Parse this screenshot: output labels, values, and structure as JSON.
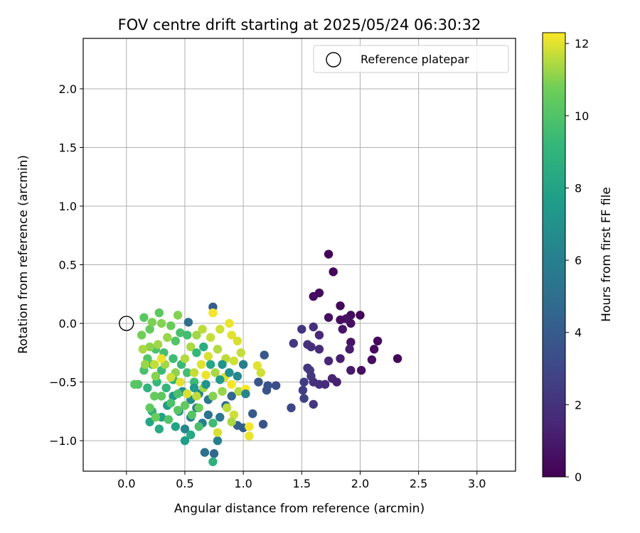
{
  "chart_data": {
    "type": "scatter",
    "title": "FOV centre drift starting at 2025/05/24 06:30:32",
    "xlabel": "Angular distance from reference (arcmin)",
    "ylabel": "Rotation from reference (arcmin)",
    "xlim": [
      -0.37,
      3.33
    ],
    "ylim": [
      -1.26,
      2.43
    ],
    "xticks": [
      "0.0",
      "0.5",
      "1.0",
      "1.5",
      "2.0",
      "2.5",
      "3.0"
    ],
    "xtick_values": [
      0,
      0.5,
      1.0,
      1.5,
      2.0,
      2.5,
      3.0
    ],
    "yticks": [
      "−1.0",
      "−0.5",
      "0.0",
      "0.5",
      "1.0",
      "1.5",
      "2.0"
    ],
    "ytick_values": [
      -1.0,
      -0.5,
      0.0,
      0.5,
      1.0,
      1.5,
      2.0
    ],
    "grid": true,
    "legend": {
      "position": "top-right",
      "entries": [
        {
          "label": "Reference platepar",
          "marker": "open-circle"
        }
      ]
    },
    "reference_point": {
      "x": 0.0,
      "y": 0.0
    },
    "colorbar": {
      "label": "Hours from first FF file",
      "colormap": "viridis",
      "range": [
        0,
        12.3
      ],
      "ticks": [
        "0",
        "2",
        "4",
        "6",
        "8",
        "10",
        "12"
      ],
      "tick_values": [
        0,
        2,
        4,
        6,
        8,
        10,
        12
      ]
    },
    "points": [
      {
        "x": 1.73,
        "y": 0.59,
        "hours": 0.1
      },
      {
        "x": 1.77,
        "y": 0.44,
        "hours": 0.2
      },
      {
        "x": 1.65,
        "y": 0.26,
        "hours": 0.4
      },
      {
        "x": 1.6,
        "y": 0.23,
        "hours": 0.5
      },
      {
        "x": 1.83,
        "y": 0.15,
        "hours": 0.3
      },
      {
        "x": 2.0,
        "y": 0.07,
        "hours": 0.2
      },
      {
        "x": 1.92,
        "y": 0.07,
        "hours": 0.4
      },
      {
        "x": 1.73,
        "y": 0.05,
        "hours": 0.6
      },
      {
        "x": 1.88,
        "y": 0.04,
        "hours": 0.7
      },
      {
        "x": 1.83,
        "y": 0.03,
        "hours": 0.5
      },
      {
        "x": 1.92,
        "y": 0.0,
        "hours": 0.6
      },
      {
        "x": 1.85,
        "y": -0.05,
        "hours": 0.8
      },
      {
        "x": 2.15,
        "y": -0.15,
        "hours": 0.3
      },
      {
        "x": 1.92,
        "y": -0.16,
        "hours": 0.7
      },
      {
        "x": 2.12,
        "y": -0.22,
        "hours": 0.4
      },
      {
        "x": 2.32,
        "y": -0.3,
        "hours": 0.2
      },
      {
        "x": 2.1,
        "y": -0.31,
        "hours": 0.5
      },
      {
        "x": 2.01,
        "y": -0.4,
        "hours": 0.6
      },
      {
        "x": 1.92,
        "y": -0.4,
        "hours": 1.0
      },
      {
        "x": 1.91,
        "y": -0.22,
        "hours": 1.1
      },
      {
        "x": 1.83,
        "y": -0.3,
        "hours": 1.2
      },
      {
        "x": 1.73,
        "y": -0.32,
        "hours": 1.5
      },
      {
        "x": 1.65,
        "y": -0.1,
        "hours": 1.6
      },
      {
        "x": 1.6,
        "y": -0.03,
        "hours": 1.9
      },
      {
        "x": 1.5,
        "y": -0.05,
        "hours": 2.1
      },
      {
        "x": 1.55,
        "y": -0.18,
        "hours": 2.0
      },
      {
        "x": 1.58,
        "y": -0.2,
        "hours": 1.8
      },
      {
        "x": 1.65,
        "y": -0.22,
        "hours": 1.7
      },
      {
        "x": 1.43,
        "y": -0.17,
        "hours": 2.3
      },
      {
        "x": 1.57,
        "y": -0.4,
        "hours": 2.4
      },
      {
        "x": 1.55,
        "y": -0.38,
        "hours": 2.2
      },
      {
        "x": 1.58,
        "y": -0.45,
        "hours": 2.3
      },
      {
        "x": 1.52,
        "y": -0.5,
        "hours": 2.5
      },
      {
        "x": 1.6,
        "y": -0.5,
        "hours": 2.1
      },
      {
        "x": 1.65,
        "y": -0.52,
        "hours": 1.9
      },
      {
        "x": 1.7,
        "y": -0.52,
        "hours": 1.7
      },
      {
        "x": 1.76,
        "y": -0.47,
        "hours": 1.4
      },
      {
        "x": 1.8,
        "y": -0.5,
        "hours": 1.3
      },
      {
        "x": 1.51,
        "y": -0.57,
        "hours": 2.6
      },
      {
        "x": 1.52,
        "y": -0.64,
        "hours": 2.7
      },
      {
        "x": 1.6,
        "y": -0.69,
        "hours": 2.2
      },
      {
        "x": 1.41,
        "y": -0.72,
        "hours": 3.0
      },
      {
        "x": 1.28,
        "y": -0.53,
        "hours": 3.3
      },
      {
        "x": 1.21,
        "y": -0.53,
        "hours": 3.5
      },
      {
        "x": 1.2,
        "y": -0.57,
        "hours": 3.6
      },
      {
        "x": 1.18,
        "y": -0.27,
        "hours": 3.8
      },
      {
        "x": 1.13,
        "y": -0.5,
        "hours": 3.7
      },
      {
        "x": 1.08,
        "y": -0.77,
        "hours": 3.9
      },
      {
        "x": 1.17,
        "y": -0.86,
        "hours": 3.6
      },
      {
        "x": 1.0,
        "y": -0.89,
        "hours": 4.1
      },
      {
        "x": 0.95,
        "y": -0.87,
        "hours": 4.2
      },
      {
        "x": 0.74,
        "y": 0.14,
        "hours": 4.0
      },
      {
        "x": 0.53,
        "y": 0.01,
        "hours": 5.0
      },
      {
        "x": 0.67,
        "y": -1.1,
        "hours": 5.2
      },
      {
        "x": 0.75,
        "y": -1.11,
        "hours": 4.6
      },
      {
        "x": 0.78,
        "y": -1.0,
        "hours": 6.0
      },
      {
        "x": 0.9,
        "y": -0.62,
        "hours": 4.5
      },
      {
        "x": 0.85,
        "y": -0.7,
        "hours": 4.8
      },
      {
        "x": 0.8,
        "y": -0.8,
        "hours": 5.5
      },
      {
        "x": 0.7,
        "y": -0.78,
        "hours": 5.3
      },
      {
        "x": 0.6,
        "y": -0.72,
        "hours": 5.8
      },
      {
        "x": 0.55,
        "y": -0.8,
        "hours": 6.2
      },
      {
        "x": 0.65,
        "y": -0.85,
        "hours": 6.0
      },
      {
        "x": 0.5,
        "y": -0.9,
        "hours": 6.4
      },
      {
        "x": 0.45,
        "y": -0.75,
        "hours": 6.8
      },
      {
        "x": 0.7,
        "y": -0.65,
        "hours": 5.6
      },
      {
        "x": 0.62,
        "y": -0.6,
        "hours": 6.1
      },
      {
        "x": 0.55,
        "y": -0.65,
        "hours": 6.6
      },
      {
        "x": 0.48,
        "y": -0.58,
        "hours": 7.0
      },
      {
        "x": 0.4,
        "y": -0.62,
        "hours": 7.3
      },
      {
        "x": 0.35,
        "y": -0.7,
        "hours": 7.6
      },
      {
        "x": 0.3,
        "y": -0.8,
        "hours": 7.9
      },
      {
        "x": 0.2,
        "y": -0.84,
        "hours": 8.2
      },
      {
        "x": 0.28,
        "y": -0.9,
        "hours": 8.4
      },
      {
        "x": 0.42,
        "y": -0.88,
        "hours": 8.0
      },
      {
        "x": 0.5,
        "y": -1.0,
        "hours": 7.7
      },
      {
        "x": 0.55,
        "y": -0.95,
        "hours": 8.3
      },
      {
        "x": 0.74,
        "y": -1.18,
        "hours": 8.8
      },
      {
        "x": 0.22,
        "y": -0.75,
        "hours": 8.9
      },
      {
        "x": 0.18,
        "y": -0.55,
        "hours": 9.0
      },
      {
        "x": 0.26,
        "y": -0.5,
        "hours": 9.2
      },
      {
        "x": 0.34,
        "y": -0.55,
        "hours": 9.1
      },
      {
        "x": 0.4,
        "y": -0.48,
        "hours": 8.7
      },
      {
        "x": 0.3,
        "y": -0.4,
        "hours": 9.4
      },
      {
        "x": 0.22,
        "y": -0.35,
        "hours": 9.6
      },
      {
        "x": 0.15,
        "y": -0.4,
        "hours": 9.8
      },
      {
        "x": 0.1,
        "y": -0.52,
        "hours": 10.0
      },
      {
        "x": 0.07,
        "y": -0.52,
        "hours": 10.2
      },
      {
        "x": 0.18,
        "y": -0.3,
        "hours": 10.1
      },
      {
        "x": 0.25,
        "y": -0.22,
        "hours": 9.9
      },
      {
        "x": 0.32,
        "y": -0.25,
        "hours": 9.7
      },
      {
        "x": 0.4,
        "y": -0.3,
        "hours": 9.5
      },
      {
        "x": 0.47,
        "y": -0.35,
        "hours": 9.3
      },
      {
        "x": 0.52,
        "y": -0.42,
        "hours": 9.6
      },
      {
        "x": 0.58,
        "y": -0.5,
        "hours": 9.4
      },
      {
        "x": 0.44,
        "y": -0.6,
        "hours": 9.8
      },
      {
        "x": 0.38,
        "y": -0.68,
        "hours": 9.9
      },
      {
        "x": 0.3,
        "y": -0.62,
        "hours": 10.3
      },
      {
        "x": 0.24,
        "y": -0.62,
        "hours": 10.5
      },
      {
        "x": 0.2,
        "y": -0.72,
        "hours": 10.4
      },
      {
        "x": 0.25,
        "y": -0.8,
        "hours": 10.6
      },
      {
        "x": 0.36,
        "y": -0.82,
        "hours": 10.0
      },
      {
        "x": 0.44,
        "y": -0.74,
        "hours": 10.2
      },
      {
        "x": 0.5,
        "y": -0.7,
        "hours": 10.4
      },
      {
        "x": 0.56,
        "y": -0.78,
        "hours": 10.1
      },
      {
        "x": 0.62,
        "y": -0.72,
        "hours": 10.7
      },
      {
        "x": 0.15,
        "y": 0.05,
        "hours": 10.2
      },
      {
        "x": 0.28,
        "y": 0.09,
        "hours": 10.3
      },
      {
        "x": 0.2,
        "y": -0.05,
        "hours": 10.5
      },
      {
        "x": 0.13,
        "y": -0.1,
        "hours": 10.8
      },
      {
        "x": 0.22,
        "y": 0.01,
        "hours": 10.9
      },
      {
        "x": 0.3,
        "y": 0.0,
        "hours": 11.0
      },
      {
        "x": 0.38,
        "y": -0.02,
        "hours": 10.6
      },
      {
        "x": 0.44,
        "y": 0.07,
        "hours": 11.0
      },
      {
        "x": 0.46,
        "y": -0.08,
        "hours": 9.8
      },
      {
        "x": 0.42,
        "y": -0.15,
        "hours": 10.0
      },
      {
        "x": 0.35,
        "y": -0.12,
        "hours": 11.2
      },
      {
        "x": 0.27,
        "y": -0.18,
        "hours": 11.3
      },
      {
        "x": 0.2,
        "y": -0.2,
        "hours": 11.1
      },
      {
        "x": 0.14,
        "y": -0.22,
        "hours": 11.4
      },
      {
        "x": 0.16,
        "y": -0.35,
        "hours": 11.2
      },
      {
        "x": 0.25,
        "y": -0.45,
        "hours": 11.0
      },
      {
        "x": 0.33,
        "y": -0.35,
        "hours": 11.3
      },
      {
        "x": 0.42,
        "y": -0.42,
        "hours": 11.1
      },
      {
        "x": 0.5,
        "y": -0.3,
        "hours": 11.5
      },
      {
        "x": 0.55,
        "y": -0.2,
        "hours": 11.4
      },
      {
        "x": 0.6,
        "y": -0.1,
        "hours": 11.3
      },
      {
        "x": 0.65,
        "y": -0.05,
        "hours": 11.6
      },
      {
        "x": 0.72,
        "y": -0.12,
        "hours": 11.7
      },
      {
        "x": 0.8,
        "y": -0.05,
        "hours": 11.8
      },
      {
        "x": 0.88,
        "y": 0.0,
        "hours": 12.1
      },
      {
        "x": 0.74,
        "y": 0.09,
        "hours": 12.2
      },
      {
        "x": 0.9,
        "y": -0.1,
        "hours": 12.0
      },
      {
        "x": 0.95,
        "y": -0.15,
        "hours": 11.9
      },
      {
        "x": 0.98,
        "y": -0.25,
        "hours": 11.7
      },
      {
        "x": 0.92,
        "y": -0.32,
        "hours": 11.8
      },
      {
        "x": 0.85,
        "y": -0.3,
        "hours": 11.6
      },
      {
        "x": 0.78,
        "y": -0.22,
        "hours": 11.5
      },
      {
        "x": 0.7,
        "y": -0.28,
        "hours": 11.9
      },
      {
        "x": 0.64,
        "y": -0.35,
        "hours": 12.0
      },
      {
        "x": 0.58,
        "y": -0.42,
        "hours": 11.7
      },
      {
        "x": 0.68,
        "y": -0.44,
        "hours": 12.1
      },
      {
        "x": 0.76,
        "y": -0.42,
        "hours": 11.4
      },
      {
        "x": 0.84,
        "y": -0.46,
        "hours": 11.9
      },
      {
        "x": 0.9,
        "y": -0.52,
        "hours": 12.2
      },
      {
        "x": 0.96,
        "y": -0.58,
        "hours": 11.5
      },
      {
        "x": 1.02,
        "y": -0.56,
        "hours": 12.3
      },
      {
        "x": 1.12,
        "y": -0.36,
        "hours": 12.0
      },
      {
        "x": 1.15,
        "y": -0.42,
        "hours": 11.8
      },
      {
        "x": 0.82,
        "y": -0.58,
        "hours": 11.2
      },
      {
        "x": 0.74,
        "y": -0.62,
        "hours": 11.0
      },
      {
        "x": 0.66,
        "y": -0.55,
        "hours": 11.3
      },
      {
        "x": 0.6,
        "y": -0.62,
        "hours": 11.6
      },
      {
        "x": 0.52,
        "y": -0.6,
        "hours": 11.9
      },
      {
        "x": 0.46,
        "y": -0.5,
        "hours": 12.0
      },
      {
        "x": 0.38,
        "y": -0.46,
        "hours": 11.8
      },
      {
        "x": 0.3,
        "y": -0.3,
        "hours": 12.1
      },
      {
        "x": 0.24,
        "y": -0.35,
        "hours": 11.7
      },
      {
        "x": 0.86,
        "y": -0.72,
        "hours": 11.6
      },
      {
        "x": 0.92,
        "y": -0.78,
        "hours": 11.8
      },
      {
        "x": 0.9,
        "y": -0.84,
        "hours": 11.4
      },
      {
        "x": 1.05,
        "y": -0.88,
        "hours": 12.2
      },
      {
        "x": 1.05,
        "y": -0.96,
        "hours": 12.1
      },
      {
        "x": 0.78,
        "y": -0.93,
        "hours": 11.9
      },
      {
        "x": 0.62,
        "y": -0.88,
        "hours": 9.8
      },
      {
        "x": 0.74,
        "y": -0.85,
        "hours": 9.5
      },
      {
        "x": 0.52,
        "y": -0.1,
        "hours": 9.6
      },
      {
        "x": 0.6,
        "y": -0.25,
        "hours": 9.2
      },
      {
        "x": 0.66,
        "y": -0.2,
        "hours": 8.6
      },
      {
        "x": 0.72,
        "y": -0.35,
        "hours": 8.2
      },
      {
        "x": 0.8,
        "y": -0.48,
        "hours": 7.5
      },
      {
        "x": 0.88,
        "y": -0.42,
        "hours": 6.9
      },
      {
        "x": 0.82,
        "y": -0.35,
        "hours": 7.2
      },
      {
        "x": 0.95,
        "y": -0.45,
        "hours": 6.5
      },
      {
        "x": 1.0,
        "y": -0.35,
        "hours": 5.9
      },
      {
        "x": 1.02,
        "y": -0.6,
        "hours": 6.3
      },
      {
        "x": 0.68,
        "y": -0.52,
        "hours": 7.1
      },
      {
        "x": 0.58,
        "y": -0.55,
        "hours": 7.4
      }
    ]
  }
}
